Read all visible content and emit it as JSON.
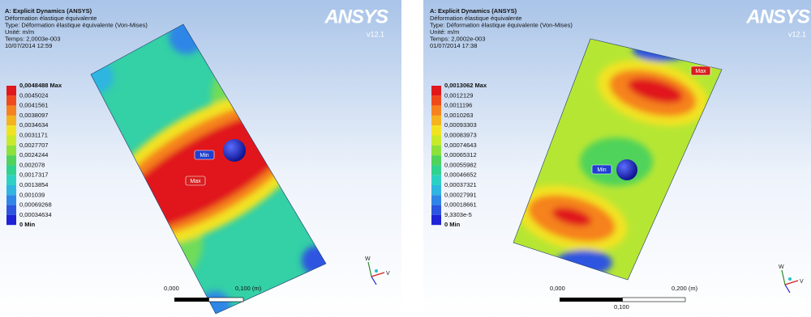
{
  "panels": [
    {
      "title": "A: Explicit Dynamics (ANSYS)",
      "lines": [
        "Déformation élastique équivalente",
        "Type: Déformation élastique équivalente (Von-Mises)",
        "Unité: m/m",
        "Temps: 2,0003e-003",
        "10/07/2014 12:59"
      ],
      "logo": "ANSYS",
      "version": "v12.1",
      "legend": [
        "0,0048488 Max",
        "0,0045024",
        "0,0041561",
        "0,0038097",
        "0,0034634",
        "0,0031171",
        "0,0027707",
        "0,0024244",
        "0,002078",
        "0,0017317",
        "0,0013854",
        "0,001039",
        "0,00069268",
        "0,00034634",
        "0 Min"
      ],
      "markers": {
        "min": "Min",
        "max": "Max"
      },
      "scale": [
        "0,000",
        "0,100 (m)"
      ],
      "triad": [
        "W",
        "V"
      ]
    },
    {
      "title": "A: Explicit Dynamics (ANSYS)",
      "lines": [
        "Déformation élastique équivalente",
        "Type: Déformation élastique équivalente (Von-Mises)",
        "Unité: m/m",
        "Temps: 2,0002e-003",
        "01/07/2014 17:38"
      ],
      "logo": "ANSYS",
      "version": "v12.1",
      "legend": [
        "0,0013062 Max",
        "0,0012129",
        "0,0011196",
        "0,0010263",
        "0,00093303",
        "0,00083973",
        "0,00074643",
        "0,00065312",
        "0,00055982",
        "0,00046652",
        "0,00037321",
        "0,00027991",
        "0,00018661",
        "9,3303e-5",
        "0 Min"
      ],
      "markers": {
        "min": "Min",
        "max": "Max"
      },
      "scale": [
        "0,000",
        "0,200 (m)",
        "0,100"
      ],
      "triad": [
        "W",
        "V"
      ]
    }
  ],
  "legend_colors": [
    "#e0181a",
    "#f04a1c",
    "#f5821e",
    "#f5b31f",
    "#f2e322",
    "#c8ea2a",
    "#8ee03a",
    "#4fd35a",
    "#2fd28f",
    "#2dd1c4",
    "#2fb5e0",
    "#2f86e6",
    "#2d55e0",
    "#1f22d6"
  ]
}
